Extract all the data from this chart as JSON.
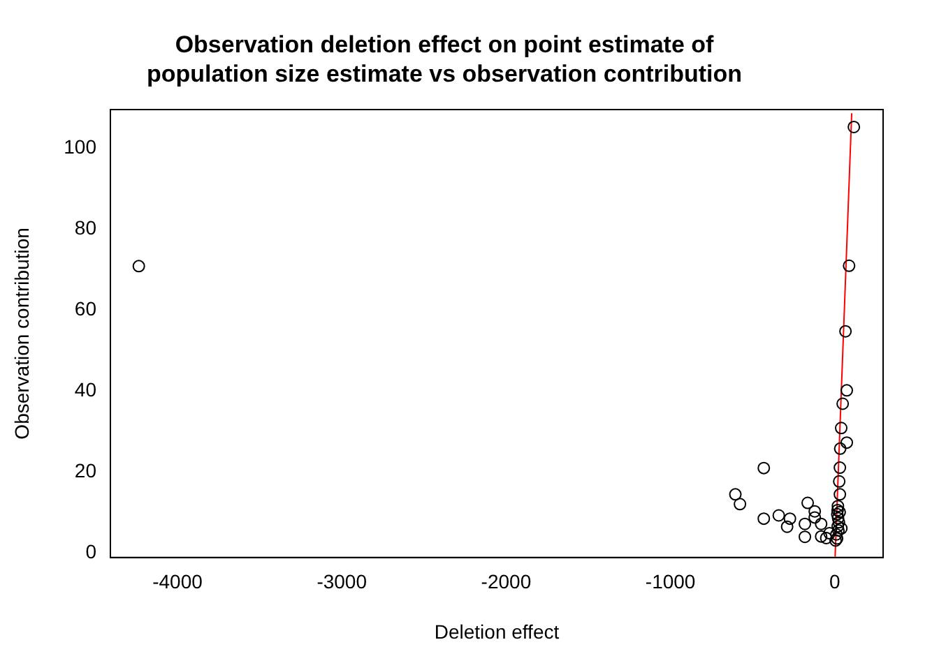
{
  "chart_data": {
    "type": "scatter",
    "title": "Observation deletion effect on point estimate of\npopulation size estimate vs observation contribution",
    "xlabel": "Deletion effect",
    "ylabel": "Observation contribution",
    "xlim": [
      -4408,
      294
    ],
    "ylim": [
      -1.2,
      109.5
    ],
    "xticks": [
      -4000,
      -3000,
      -2000,
      -1000,
      0
    ],
    "yticks": [
      0,
      20,
      40,
      60,
      80,
      100
    ],
    "grid": false,
    "legend": false,
    "series": [
      {
        "marker": "circle",
        "color": "#000000",
        "x": [
          -4235,
          116,
          87,
          65,
          73,
          48,
          39,
          73,
          33,
          31,
          27,
          31,
          19,
          17,
          15,
          20,
          25,
          18,
          22,
          10,
          14,
          5,
          40,
          30,
          -432,
          -605,
          -577,
          -432,
          -341,
          -273,
          -290,
          -182,
          -182,
          -165,
          -122,
          -122,
          -83,
          -83,
          -52,
          -32
        ],
        "values": [
          70.8,
          105.2,
          70.9,
          54.7,
          40.1,
          36.8,
          30.8,
          27.2,
          25.7,
          21.0,
          17.6,
          14.4,
          11.5,
          10.5,
          9.5,
          8.5,
          7.5,
          6.5,
          5.5,
          4.5,
          3.5,
          3,
          6,
          10,
          20.9,
          14.4,
          12.0,
          8.4,
          9.2,
          8.4,
          6.4,
          7.1,
          3.9,
          12.3,
          10.2,
          8.7,
          7.1,
          4.0,
          3.6,
          4.8
        ]
      },
      {
        "type": "line",
        "color": "#ff0000",
        "x": [
          2,
          103
        ],
        "values": [
          -1,
          108.6
        ]
      }
    ]
  }
}
